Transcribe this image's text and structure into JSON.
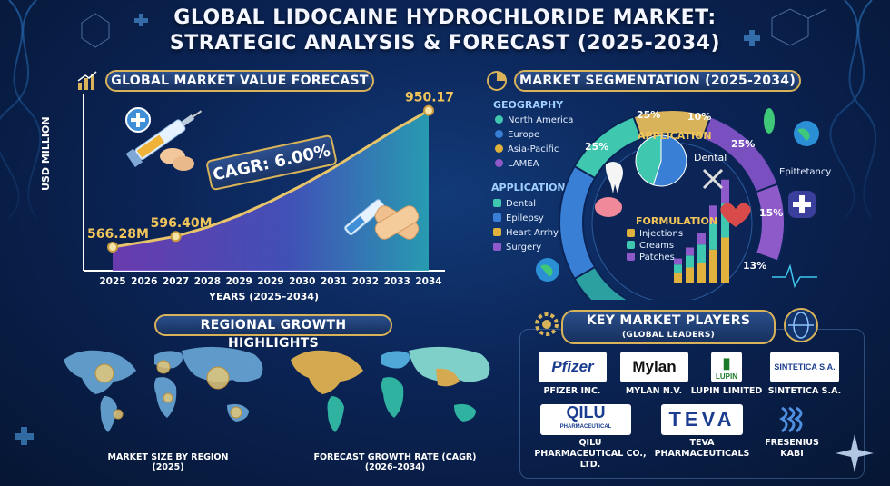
{
  "header": {
    "title_line1": "GLOBAL LIDOCAINE HYDROCHLORIDE MARKET:",
    "title_line2": "STRATEGIC ANALYSIS & FORECAST (2025-2034)"
  },
  "forecast_panel": {
    "title": "GLOBAL MARKET VALUE FORECAST",
    "cagr_label": "CAGR: 6.00%"
  },
  "segmentation_panel": {
    "title": "MARKET SEGMENTATION (2025-2034)",
    "geography_heading": "GEOGRAPHY",
    "geography_items": [
      "North America",
      "Europe",
      "Asia-Pacific",
      "LAMEA"
    ],
    "application_heading": "APPLICATION",
    "application_items": [
      "Dental",
      "Epilepsy",
      "Heart Arrhythmia",
      "Surgery"
    ],
    "inner_application_label": "APPLICATION",
    "inner_dental_label": "Dental",
    "formulation_heading": "FORMULATION",
    "formulation_items": [
      "Injections",
      "Creams",
      "Patches"
    ],
    "ring_labels": [
      "25%",
      "10%",
      "25%",
      "15%",
      "13%",
      "25%"
    ],
    "side_label": "Epittetancy"
  },
  "regional_panel": {
    "title": "REGIONAL GROWTH HIGHLIGHTS",
    "map1_caption_line1": "MARKET SIZE BY REGION",
    "map1_caption_line2": "(2025)",
    "map2_caption_line1": "FORECAST GROWTH RATE (CAGR)",
    "map2_caption_line2": "(2026–2034)"
  },
  "players_panel": {
    "title": "KEY MARKET PLAYERS",
    "subtitle": "(GLOBAL LEADERS)",
    "players": [
      {
        "logo": "Pfizer",
        "name1": "PFIZER INC.",
        "name2": ""
      },
      {
        "logo": "Mylan",
        "name1": "MYLAN N.V.",
        "name2": ""
      },
      {
        "logo": "LUPIN",
        "name1": "LUPIN LIMITED",
        "name2": ""
      },
      {
        "logo": "SINTETICA S.A.",
        "name1": "SINTETICA S.A.",
        "name2": ""
      },
      {
        "logo": "QILU",
        "logo_sub": "PHARMACEUTICAL",
        "name1": "QILU",
        "name2": "PHARMACEUTICAL CO., LTD."
      },
      {
        "logo": "TEVA",
        "name1": "TEVA",
        "name2": "PHARMACEUTICALS"
      },
      {
        "logo": "",
        "name1": "FRESENIUS",
        "name2": "KABI"
      }
    ]
  },
  "colors": {
    "gold": "#d9b35a",
    "teal": "#3fc7b0",
    "blue": "#3a7fd6",
    "purple": "#8e5ac9",
    "amber": "#e0b13c"
  },
  "chart_data": [
    {
      "type": "area",
      "title": "GLOBAL MARKET VALUE FORECAST",
      "xlabel": "YEARS (2025–2034)",
      "ylabel": "USD MILLION",
      "tick_labels": [
        "2025",
        "2026",
        "2027",
        "2028",
        "2029",
        "2029",
        "2030",
        "2031",
        "2032",
        "2033",
        "2034"
      ],
      "data_labels": [
        {
          "label": "566.28M",
          "x": "2025",
          "y": 566.28
        },
        {
          "label": "596.40M",
          "x": "2027",
          "y": 596.4
        },
        {
          "label": "950.17M",
          "x": "2034",
          "y": 950.17
        }
      ],
      "curve_values": [
        566.28,
        581,
        596.4,
        622,
        655,
        695,
        740,
        790,
        845,
        900,
        950.17
      ],
      "grid": false
    },
    {
      "type": "pie",
      "title": "APPLICATION",
      "labels": [
        "",
        "Dental"
      ],
      "values": [
        55,
        45
      ]
    },
    {
      "type": "bar",
      "title": "FORMULATION",
      "series": [
        {
          "name": "Injections",
          "values": [
            1,
            1.5,
            2,
            3.3,
            4.5
          ]
        },
        {
          "name": "Creams",
          "values": [
            0.8,
            1.2,
            1.8,
            2.6,
            3.4
          ]
        },
        {
          "name": "Patches",
          "values": [
            0.6,
            0.8,
            1.2,
            1.8,
            2.4
          ]
        }
      ]
    }
  ]
}
